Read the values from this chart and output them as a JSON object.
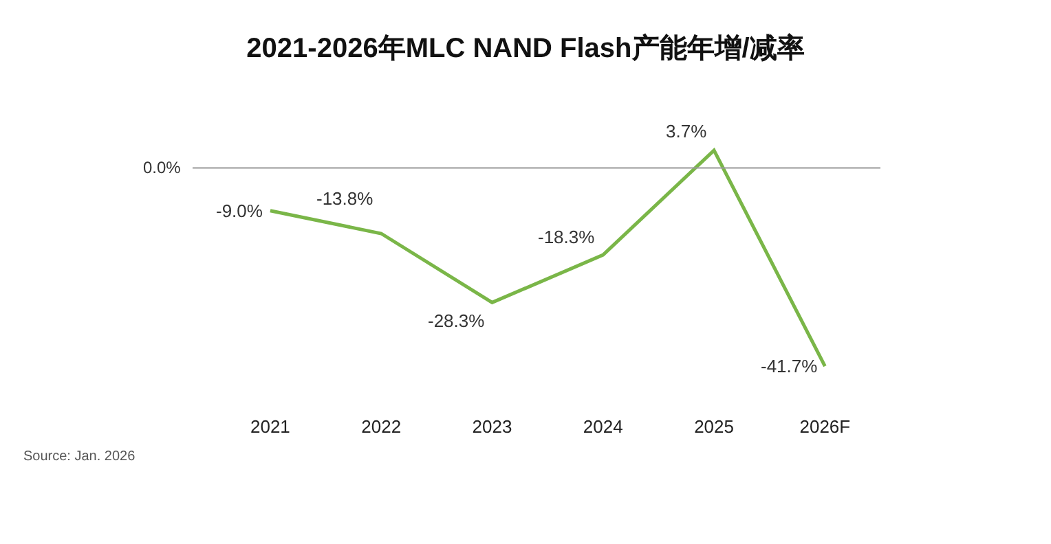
{
  "chart_data": {
    "type": "line",
    "title": "2021-2026年MLC NAND Flash产能年增/减率",
    "categories": [
      "2021",
      "2022",
      "2023",
      "2024",
      "2025",
      "2026F"
    ],
    "series": [
      {
        "color": "#7ab648",
        "values": [
          -9.0,
          -13.8,
          -28.3,
          -18.3,
          3.7,
          -41.7
        ],
        "value_labels": [
          "-9.0%",
          "-13.8%",
          "-28.3%",
          "-18.3%",
          "3.7%",
          "-41.7%"
        ]
      }
    ],
    "ref_lines": [
      {
        "axis": "y",
        "value": 0,
        "label": "0.0%",
        "color": "#999999"
      }
    ],
    "tick_labels": "x",
    "legend": false,
    "marker": "none",
    "line_style": "solid",
    "annotations": [
      "Source: Jan. 2026"
    ]
  }
}
